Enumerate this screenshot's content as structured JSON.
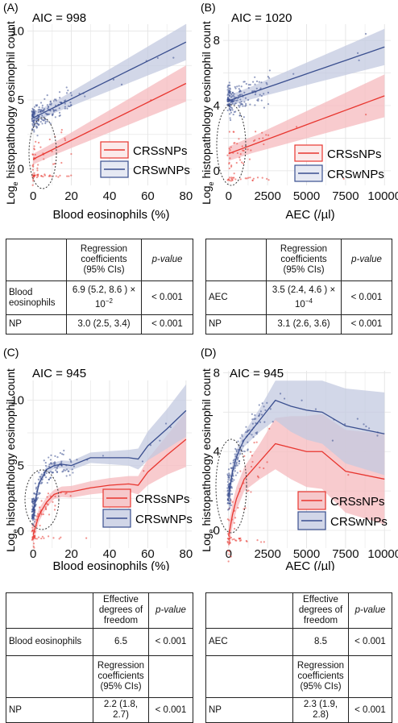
{
  "colors": {
    "sNP": "#e8362f",
    "wNP": "#3a4f8f",
    "sNP_band": "#f6b9bd",
    "wNP_band": "#c3c9e0",
    "grid": "#e6e6e6"
  },
  "ylabel_prefix": "Log",
  "ylabel_sub": "e",
  "ylabel_rest": " histopathology eosinophil count",
  "panels": [
    {
      "label": "(A)",
      "aic": "AIC = 998",
      "xlabel": "Blood eosinophils (%)",
      "legend": [
        "CRSsNPs",
        "CRSwNPs"
      ],
      "table": {
        "head": [
          "",
          "Regression coefficients (95% CIs)",
          "p-value"
        ],
        "rows": [
          [
            "Blood eosinophils",
            "6.9 (5.2, 8.6 ) × 10",
            "−2",
            "< 0.001"
          ],
          [
            "NP",
            "3.0 (2.5, 3.4)",
            "",
            "< 0.001"
          ]
        ]
      }
    },
    {
      "label": "(B)",
      "aic": "AIC = 1020",
      "xlabel": "AEC (/µl)",
      "legend": [
        "CRSsNPs",
        "CRSwNPs"
      ],
      "table": {
        "head": [
          "",
          "Regression coefficients (95% CIs)",
          "p-value"
        ],
        "rows": [
          [
            "AEC",
            "3.5 (2.4, 4.6 ) × 10",
            "−4",
            "< 0.001"
          ],
          [
            "NP",
            "3.1 (2.6, 3.6)",
            "",
            "< 0.001"
          ]
        ]
      }
    },
    {
      "label": "(C)",
      "aic": "AIC = 945",
      "xlabel": "Blood eosinophils (%)",
      "legend": [
        "CRSsNPs",
        "CRSwNPs"
      ],
      "table": {
        "head": [
          "",
          "Effective degrees of freedom",
          "p-value"
        ],
        "row1": [
          "Blood eosinophils",
          "6.5",
          "< 0.001"
        ],
        "mid": "Regression coefficients (95% CIs)",
        "row2": [
          "NP",
          "2.2 (1.8, 2.7)",
          "< 0.001"
        ]
      }
    },
    {
      "label": "(D)",
      "aic": "AIC = 945",
      "xlabel": "AEC (/µl)",
      "legend": [
        "CRSsNPs",
        "CRSwNPs"
      ],
      "table": {
        "head": [
          "",
          "Effective degrees of freedom",
          "p-value"
        ],
        "row1": [
          "AEC",
          "8.5",
          "< 0.001"
        ],
        "mid": "Regression coefficients (95% CIs)",
        "row2": [
          "NP",
          "2.3 (1.9, 2.8)",
          "< 0.001"
        ]
      }
    }
  ],
  "chart_data": [
    {
      "type": "scatter",
      "x_range": [
        -3,
        83
      ],
      "y_range": [
        -1.2,
        10.5
      ],
      "xticks": [
        0,
        20,
        40,
        60,
        80
      ],
      "yticks": [
        0,
        5,
        10
      ],
      "series": [
        {
          "name": "CRSsNPs",
          "kind": "linear",
          "fit": {
            "x": [
              0,
              80
            ],
            "y": [
              0.7,
              6.2
            ]
          },
          "band_at_x80": 1.1,
          "band_at_x0": 0.35
        },
        {
          "name": "CRSwNPs",
          "kind": "linear",
          "fit": {
            "x": [
              0,
              80
            ],
            "y": [
              3.7,
              9.2
            ]
          },
          "band_at_x80": 1.1,
          "band_at_x0": 0.3
        }
      ],
      "grid": true,
      "legend_position": "bottom-right"
    },
    {
      "type": "scatter",
      "x_range": [
        -350,
        10400
      ],
      "y_range": [
        -0.9,
        9.0
      ],
      "xticks": [
        0,
        2500,
        5000,
        7500,
        10000
      ],
      "yticks": [
        0,
        4,
        8
      ],
      "series": [
        {
          "name": "CRSsNPs",
          "kind": "linear",
          "fit": {
            "x": [
              0,
              10000
            ],
            "y": [
              1.05,
              4.6
            ]
          },
          "band_at_x10000": 1.1,
          "band_at_x0": 0.4
        },
        {
          "name": "CRSwNPs",
          "kind": "linear",
          "fit": {
            "x": [
              0,
              10000
            ],
            "y": [
              4.3,
              7.6
            ]
          },
          "band_at_x10000": 0.9,
          "band_at_x0": 0.3
        }
      ],
      "grid": true,
      "legend_position": "bottom-right"
    },
    {
      "type": "scatter",
      "x_range": [
        -3,
        83
      ],
      "y_range": [
        -1.3,
        11.5
      ],
      "xticks": [
        0,
        20,
        40,
        60,
        80
      ],
      "yticks": [
        0,
        5,
        10
      ],
      "series": [
        {
          "name": "CRSsNPs",
          "kind": "smooth",
          "x": [
            0,
            3,
            7,
            11,
            15,
            20,
            30,
            40,
            50,
            55,
            60,
            70,
            80
          ],
          "y": [
            -0.3,
            1.2,
            2.2,
            2.8,
            3.0,
            3.0,
            3.3,
            3.5,
            3.6,
            3.5,
            4.5,
            5.8,
            7.0
          ],
          "band": [
            0.7,
            0.5,
            0.4,
            0.35,
            0.4,
            0.45,
            0.5,
            0.55,
            0.6,
            0.7,
            1.0,
            1.5,
            2.1
          ]
        },
        {
          "name": "CRSwNPs",
          "kind": "smooth",
          "x": [
            0,
            3,
            7,
            11,
            15,
            20,
            30,
            40,
            50,
            55,
            60,
            70,
            80
          ],
          "y": [
            1.5,
            3.6,
            4.7,
            5.0,
            5.1,
            5.0,
            5.6,
            5.6,
            5.6,
            5.5,
            6.5,
            7.8,
            9.2
          ],
          "band": [
            0.6,
            0.3,
            0.25,
            0.25,
            0.3,
            0.35,
            0.4,
            0.5,
            0.6,
            0.8,
            1.1,
            1.5,
            2.0
          ]
        }
      ],
      "grid": true,
      "legend_position": "bottom-right"
    },
    {
      "type": "scatter",
      "x_range": [
        -350,
        10400
      ],
      "y_range": [
        -0.9,
        8.1
      ],
      "xticks": [
        0,
        2500,
        5000,
        7500,
        10000
      ],
      "yticks": [
        0,
        4,
        8
      ],
      "series": [
        {
          "name": "CRSsNPs",
          "kind": "smooth",
          "x": [
            0,
            250,
            500,
            750,
            1000,
            2000,
            3000,
            4000,
            5000,
            6000,
            7500,
            10000
          ],
          "y": [
            -0.3,
            0.8,
            1.6,
            2.1,
            2.6,
            3.5,
            4.4,
            4.2,
            4.0,
            4.0,
            3.0,
            2.6
          ],
          "band": [
            0.6,
            0.6,
            0.6,
            0.6,
            0.6,
            0.9,
            1.3,
            1.6,
            1.8,
            1.9,
            2.1,
            2.3
          ]
        },
        {
          "name": "CRSwNPs",
          "kind": "smooth",
          "x": [
            0,
            250,
            500,
            750,
            1000,
            2000,
            3000,
            4000,
            5000,
            6000,
            7500,
            10000
          ],
          "y": [
            1.7,
            3.0,
            3.7,
            4.2,
            4.6,
            5.6,
            6.6,
            6.3,
            6.1,
            6.0,
            5.3,
            4.9
          ],
          "band": [
            0.5,
            0.4,
            0.35,
            0.35,
            0.35,
            0.6,
            1.0,
            1.3,
            1.5,
            1.6,
            1.9,
            2.1
          ]
        }
      ],
      "grid": true,
      "legend_position": "bottom-right"
    }
  ]
}
